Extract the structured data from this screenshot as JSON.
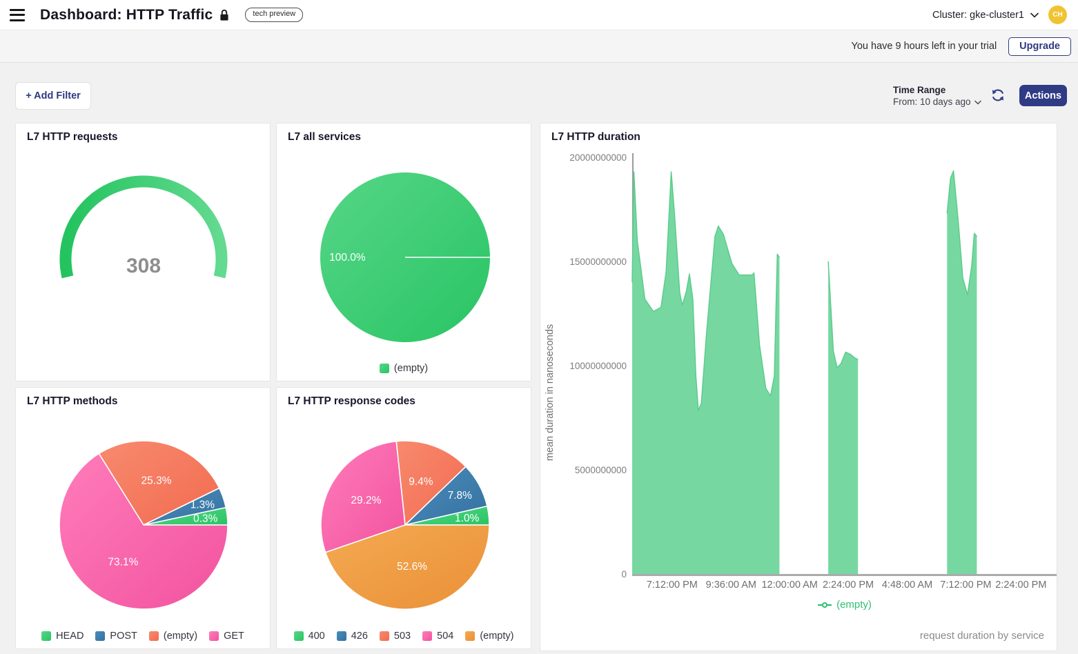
{
  "header": {
    "title": "Dashboard: HTTP Traffic",
    "badge": "tech preview",
    "cluster_label": "Cluster: gke-cluster1",
    "avatar_initials": "CH"
  },
  "trial_bar": {
    "message": "You have 9 hours left in your trial",
    "upgrade_label": "Upgrade"
  },
  "toolbar": {
    "add_filter_label": "+ Add Filter",
    "time_range_label": "Time Range",
    "time_range_value": "From: 10 days ago",
    "actions_label": "Actions"
  },
  "panels": {
    "requests": {
      "title": "L7 HTTP requests"
    },
    "services": {
      "title": "L7 all services"
    },
    "duration": {
      "title": "L7 HTTP duration",
      "footer": "request duration by service"
    },
    "methods": {
      "title": "L7 HTTP methods"
    },
    "codes": {
      "title": "L7 HTTP response codes"
    }
  },
  "colors": {
    "accent_navy": "#2f3b85",
    "avatar_bg": "#f0c431",
    "value_gray": "#8e8e8e",
    "axis_line": "#9b9b9b",
    "x_axis_line": "#ababab",
    "tick_text": "#6f6f6f",
    "area_fill": "#76d8a0",
    "area_line": "#5ccb8e",
    "legend_green_text": "#2ebf71",
    "gauge": [
      "#23c35f",
      "#63da90"
    ],
    "green": [
      "#56d687",
      "#29c464"
    ],
    "blue": [
      "#4a8cbd",
      "#35719f"
    ],
    "salmon": [
      "#f88a6e",
      "#f26b50"
    ],
    "pink": [
      "#ff7cba",
      "#f2539f"
    ],
    "orange": [
      "#f4aa52",
      "#ea9037"
    ]
  },
  "chart_data": [
    {
      "panel": "requests",
      "type": "gauge",
      "title": "L7 HTTP requests",
      "value": 308,
      "value_label": "308",
      "arc_degrees": 206
    },
    {
      "panel": "services",
      "type": "pie",
      "title": "L7 all services",
      "slices": [
        {
          "label": "(empty)",
          "pct": 100.0,
          "pct_label": "100.0%",
          "color": "green",
          "display_deg": [
            0,
            360
          ]
        }
      ],
      "legend_position": "bottom"
    },
    {
      "panel": "duration",
      "type": "area",
      "title": "L7 HTTP duration",
      "xlabel": "",
      "ylabel": "mean duration in nanoseconds",
      "ylim": [
        0,
        20000000000
      ],
      "grid": false,
      "legend": {
        "label": "(empty)"
      },
      "footer": "request duration by service",
      "y_ticks": [
        {
          "v": 0,
          "label": "0"
        },
        {
          "v": 5000000000,
          "label": "5000000000"
        },
        {
          "v": 10000000000,
          "label": "10000000000"
        },
        {
          "v": 15000000000,
          "label": "15000000000"
        },
        {
          "v": 20000000000,
          "label": "20000000000"
        }
      ],
      "x_ticks": [
        {
          "f": 0.094,
          "label": "7:12:00 PM"
        },
        {
          "f": 0.233,
          "label": "9:36:00 AM"
        },
        {
          "f": 0.371,
          "label": "12:00:00 AM"
        },
        {
          "f": 0.509,
          "label": "2:24:00 PM"
        },
        {
          "f": 0.648,
          "label": "4:48:00 AM"
        },
        {
          "f": 0.786,
          "label": "7:12:00 PM"
        },
        {
          "f": 0.916,
          "label": "2:24:00 PM"
        }
      ],
      "segments": [
        [
          [
            0.0,
            14000000000
          ],
          [
            0.004,
            19300000000
          ],
          [
            0.012,
            16000000000
          ],
          [
            0.03,
            13200000000
          ],
          [
            0.05,
            12600000000
          ],
          [
            0.068,
            12800000000
          ],
          [
            0.08,
            14500000000
          ],
          [
            0.092,
            19300000000
          ],
          [
            0.1,
            17200000000
          ],
          [
            0.112,
            13500000000
          ],
          [
            0.118,
            12900000000
          ],
          [
            0.128,
            13600000000
          ],
          [
            0.135,
            14400000000
          ],
          [
            0.143,
            13200000000
          ],
          [
            0.15,
            9500000000
          ],
          [
            0.156,
            7850000000
          ],
          [
            0.163,
            8200000000
          ],
          [
            0.175,
            11500000000
          ],
          [
            0.195,
            16200000000
          ],
          [
            0.203,
            16700000000
          ],
          [
            0.215,
            16300000000
          ],
          [
            0.235,
            14900000000
          ],
          [
            0.252,
            14350000000
          ],
          [
            0.283,
            14350000000
          ],
          [
            0.287,
            14450000000
          ],
          [
            0.3,
            11000000000
          ],
          [
            0.315,
            8900000000
          ],
          [
            0.326,
            8550000000
          ],
          [
            0.335,
            9500000000
          ],
          [
            0.342,
            15350000000
          ],
          [
            0.347,
            15200000000
          ]
        ],
        [
          [
            0.462,
            15000000000
          ],
          [
            0.467,
            13200000000
          ],
          [
            0.474,
            10700000000
          ],
          [
            0.483,
            9900000000
          ],
          [
            0.492,
            10100000000
          ],
          [
            0.503,
            10650000000
          ],
          [
            0.514,
            10550000000
          ],
          [
            0.526,
            10350000000
          ],
          [
            0.532,
            10300000000
          ]
        ],
        [
          [
            0.742,
            17300000000
          ],
          [
            0.75,
            19000000000
          ],
          [
            0.757,
            19350000000
          ],
          [
            0.768,
            17000000000
          ],
          [
            0.779,
            14200000000
          ],
          [
            0.79,
            13400000000
          ],
          [
            0.8,
            14800000000
          ],
          [
            0.806,
            16350000000
          ],
          [
            0.812,
            16200000000
          ]
        ]
      ]
    },
    {
      "panel": "methods",
      "type": "pie",
      "title": "L7 HTTP methods",
      "slices": [
        {
          "label": "HEAD",
          "pct": 0.3,
          "pct_label": "0.3%",
          "color": "green",
          "display_deg": [
            0,
            12
          ]
        },
        {
          "label": "POST",
          "pct": 1.3,
          "pct_label": "1.3%",
          "color": "blue",
          "display_deg": [
            12,
            26
          ]
        },
        {
          "label": "(empty)",
          "pct": 25.3,
          "pct_label": "25.3%",
          "color": "salmon",
          "display_deg": [
            26,
            122
          ]
        },
        {
          "label": "GET",
          "pct": 73.1,
          "pct_label": "73.1%",
          "color": "pink",
          "display_deg": [
            122,
            360
          ]
        }
      ],
      "legend_position": "bottom"
    },
    {
      "panel": "codes",
      "type": "pie",
      "title": "L7 HTTP response codes",
      "slices": [
        {
          "label": "400",
          "pct": 1.0,
          "pct_label": "1.0%",
          "color": "green",
          "display_deg": [
            0,
            13
          ]
        },
        {
          "label": "426",
          "pct": 7.8,
          "pct_label": "7.8%",
          "color": "blue",
          "display_deg": [
            13,
            44
          ]
        },
        {
          "label": "503",
          "pct": 9.4,
          "pct_label": "9.4%",
          "color": "salmon",
          "display_deg": [
            44,
            96
          ]
        },
        {
          "label": "504",
          "pct": 29.2,
          "pct_label": "29.2%",
          "color": "pink",
          "display_deg": [
            96,
            199
          ]
        },
        {
          "label": "(empty)",
          "pct": 52.6,
          "pct_label": "52.6%",
          "color": "orange",
          "display_deg": [
            199,
            360
          ]
        }
      ],
      "legend_position": "bottom"
    }
  ]
}
